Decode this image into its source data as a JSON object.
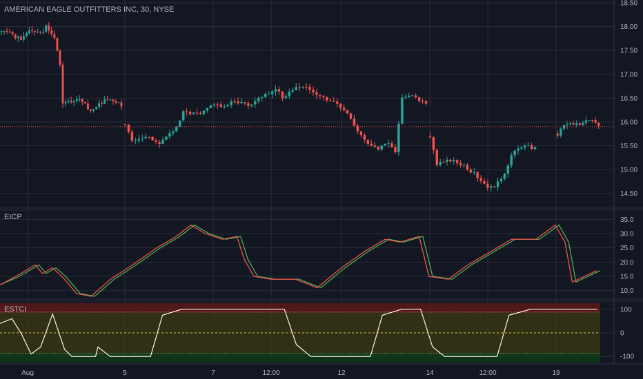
{
  "title": "AMERICAN EAGLE OUTFITTERS INC, 30, NYSE",
  "colors": {
    "background": "#131722",
    "grid": "#2a2e39",
    "bull": "#26a69a",
    "bear": "#ef5350",
    "axis_text": "#b2b5be",
    "eicp_green": "#4caf50",
    "eicp_red": "#ef5350",
    "estci_line": "#fff8dc",
    "overbought_zone": "#5a1a1a",
    "mid_zone": "#3b3a10",
    "oversold_zone": "#103a1a"
  },
  "x_axis": {
    "labels": [
      "Aug",
      "5",
      "7",
      "12:00",
      "12",
      "14",
      "12:00",
      "19"
    ]
  },
  "chart_data": [
    {
      "type": "candlestick",
      "name": "price",
      "ylim": [
        14.25,
        18.5
      ],
      "yticks": [
        "18.50",
        "18.00",
        "17.50",
        "17.00",
        "16.50",
        "16.00",
        "15.50",
        "15.00",
        "14.50"
      ],
      "close_line": 15.9,
      "segments": [
        {
          "path": [
            [
              17.9,
              0
            ],
            [
              17.85,
              4
            ],
            [
              17.7,
              7
            ],
            [
              17.95,
              10
            ],
            [
              17.85,
              14
            ],
            [
              18.0,
              16
            ],
            [
              17.75,
              19
            ],
            [
              17.2,
              21
            ],
            [
              16.4,
              22
            ],
            [
              16.45,
              28
            ],
            [
              16.25,
              32
            ],
            [
              16.5,
              38
            ],
            [
              16.4,
              41
            ],
            [
              16.35,
              43
            ]
          ],
          "seed": 1
        },
        {
          "path": [
            [
              15.95,
              0
            ],
            [
              15.6,
              2
            ],
            [
              15.7,
              7
            ],
            [
              15.55,
              10
            ],
            [
              15.8,
              14
            ],
            [
              16.2,
              17
            ],
            [
              16.15,
              22
            ],
            [
              16.4,
              26
            ],
            [
              16.3,
              29
            ],
            [
              16.45,
              32
            ],
            [
              16.35,
              36
            ],
            [
              16.55,
              40
            ],
            [
              16.7,
              44
            ],
            [
              16.5,
              46
            ],
            [
              16.75,
              50
            ],
            [
              16.7,
              54
            ],
            [
              16.5,
              58
            ],
            [
              16.35,
              62
            ],
            [
              16.15,
              65
            ],
            [
              15.9,
              67
            ],
            [
              15.6,
              70
            ],
            [
              15.45,
              74
            ],
            [
              15.55,
              77
            ],
            [
              15.4,
              79
            ],
            [
              16.5,
              81
            ],
            [
              16.55,
              84
            ],
            [
              16.4,
              88
            ]
          ],
          "seed": 2
        },
        {
          "path": [
            [
              15.7,
              0
            ],
            [
              15.1,
              2
            ],
            [
              15.2,
              6
            ],
            [
              15.1,
              10
            ],
            [
              14.85,
              14
            ],
            [
              14.65,
              17
            ],
            [
              14.6,
              19
            ],
            [
              14.95,
              22
            ],
            [
              15.3,
              24
            ],
            [
              15.5,
              27
            ],
            [
              15.45,
              31
            ]
          ],
          "seed": 3
        },
        {
          "path": [
            [
              15.75,
              0
            ],
            [
              15.95,
              2
            ],
            [
              15.95,
              7
            ],
            [
              16.05,
              11
            ],
            [
              15.95,
              13
            ]
          ],
          "seed": 4
        }
      ]
    },
    {
      "type": "line",
      "name": "EICP",
      "ylim": [
        8.0,
        37.0
      ],
      "yticks": [
        "35.0",
        "30.0",
        "25.0",
        "20.0",
        "15.0",
        "10.0"
      ],
      "keyframes": [
        [
          0,
          12
        ],
        [
          8,
          15
        ],
        [
          16,
          19
        ],
        [
          19,
          16
        ],
        [
          23,
          18
        ],
        [
          27,
          15
        ],
        [
          30,
          12
        ],
        [
          33,
          9
        ],
        [
          39,
          8
        ],
        [
          47,
          14
        ],
        [
          56,
          19
        ],
        [
          66,
          25
        ],
        [
          74,
          29
        ],
        [
          80,
          33
        ],
        [
          86,
          30
        ],
        [
          93,
          28
        ],
        [
          99,
          29
        ],
        [
          102,
          21
        ],
        [
          106,
          15
        ],
        [
          113,
          14
        ],
        [
          123,
          14
        ],
        [
          132,
          11
        ],
        [
          142,
          18
        ],
        [
          152,
          24
        ],
        [
          160,
          28
        ],
        [
          166,
          27
        ],
        [
          174,
          29
        ],
        [
          178,
          15
        ],
        [
          186,
          14
        ],
        [
          194,
          19
        ],
        [
          204,
          24
        ],
        [
          212,
          28
        ],
        [
          222,
          28
        ],
        [
          230,
          33
        ],
        [
          234,
          27
        ],
        [
          237,
          13
        ],
        [
          242,
          15
        ],
        [
          247,
          17
        ]
      ],
      "series": [
        {
          "lead": 0,
          "color_key": "eicp_green"
        },
        {
          "lead": -1.5,
          "color_key": "eicp_red"
        }
      ]
    },
    {
      "type": "line",
      "name": "ESTCI",
      "ylim": [
        -120,
        120
      ],
      "yticks": [
        "100",
        "0",
        "-100"
      ],
      "levels": [
        88,
        0,
        -88
      ],
      "values": [
        [
          0,
          40
        ],
        [
          5,
          60
        ],
        [
          9,
          -5
        ],
        [
          13,
          -90
        ],
        [
          17,
          -60
        ],
        [
          22,
          80
        ],
        [
          27,
          -70
        ],
        [
          30,
          -100
        ],
        [
          40,
          -100
        ],
        [
          41,
          -60
        ],
        [
          46,
          -100
        ],
        [
          63,
          -100
        ],
        [
          68,
          75
        ],
        [
          76,
          100
        ],
        [
          119,
          100
        ],
        [
          124,
          -50
        ],
        [
          130,
          -100
        ],
        [
          155,
          -100
        ],
        [
          160,
          75
        ],
        [
          168,
          100
        ],
        [
          176,
          100
        ],
        [
          181,
          -60
        ],
        [
          186,
          -100
        ],
        [
          208,
          -100
        ],
        [
          213,
          75
        ],
        [
          222,
          100
        ],
        [
          250,
          100
        ]
      ]
    }
  ]
}
